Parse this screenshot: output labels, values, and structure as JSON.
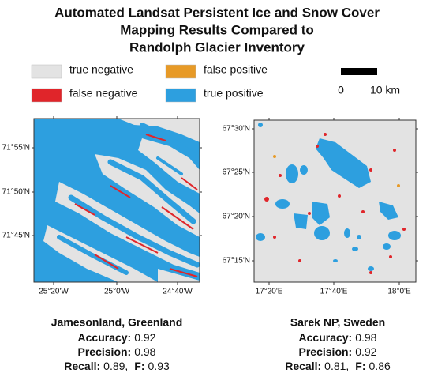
{
  "header": {
    "title": [
      "Automated Landsat Persistent Ice and Snow Cover",
      "Mapping Results Compared to",
      "Randolph Glacier Inventory"
    ]
  },
  "legend": {
    "items": [
      {
        "label": "true negative",
        "color": "#e3e3e3"
      },
      {
        "label": "false negative",
        "color": "#e0252a"
      },
      {
        "label": "false positive",
        "color": "#e79a27"
      },
      {
        "label": "true positive",
        "color": "#2d9fdf"
      }
    ],
    "scale_bar": {
      "start": "0",
      "end": "10 km"
    }
  },
  "panels": [
    {
      "name": "Jamesonland, Greenland",
      "yticks": [
        "71°55'N",
        "71°50'N",
        "71°45'N"
      ],
      "xticks": [
        "25°20'W",
        "25°0'W",
        "24°40'W"
      ],
      "metrics": [
        [
          {
            "label": "Accuracy:",
            "value": "0.92"
          }
        ],
        [
          {
            "label": "Precision:",
            "value": "0.98"
          }
        ],
        [
          {
            "label": "Recall:",
            "value": "0.89,"
          },
          {
            "label": "F:",
            "value": "0.93"
          }
        ]
      ]
    },
    {
      "name": "Sarek NP, Sweden",
      "yticks": [
        "67°30'N",
        "67°25'N",
        "67°20'N",
        "67°15'N"
      ],
      "xticks": [
        "17°20'E",
        "17°40'E",
        "18°0'E"
      ],
      "metrics": [
        [
          {
            "label": "Accuracy:",
            "value": "0.98"
          }
        ],
        [
          {
            "label": "Precision:",
            "value": "0.92"
          }
        ],
        [
          {
            "label": "Recall:",
            "value": "0.81,"
          },
          {
            "label": "F:",
            "value": "0.86"
          }
        ]
      ]
    }
  ]
}
